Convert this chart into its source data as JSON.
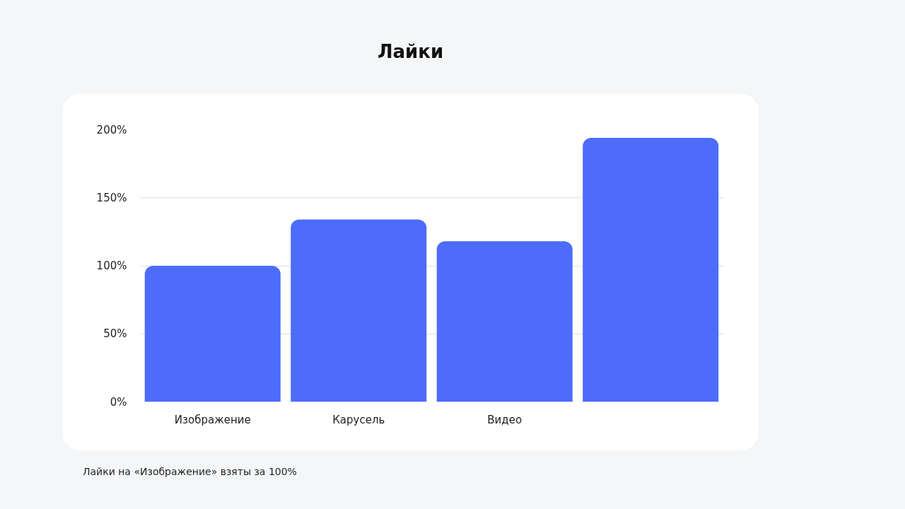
{
  "chart_data": {
    "type": "bar",
    "title": "Лайки",
    "categories": [
      "Изображение",
      "Карусель",
      "Видео",
      null
    ],
    "values": [
      100,
      134,
      118,
      194
    ],
    "color": "#4d6cfb",
    "ylim": [
      0,
      200
    ],
    "yticks": [
      {
        "value": 0,
        "label": "0%"
      },
      {
        "value": 50,
        "label": "50%"
      },
      {
        "value": 100,
        "label": "100%"
      },
      {
        "value": 150,
        "label": "150%"
      },
      {
        "value": 200,
        "label": "200%"
      }
    ],
    "grid": "y",
    "annotations": [
      "Лайки на «Изображение» взяты за 100%"
    ]
  }
}
